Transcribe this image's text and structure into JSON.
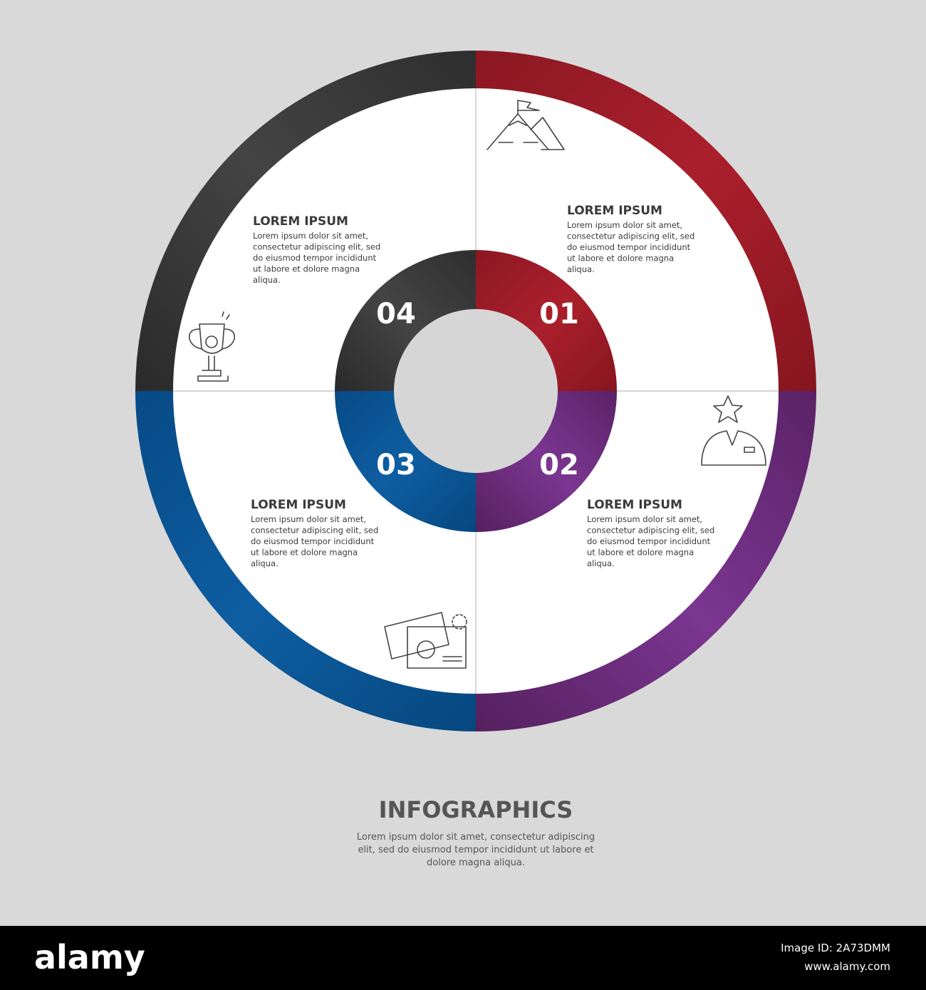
{
  "sections": [
    {
      "number": "01",
      "title": "LOREM IPSUM",
      "lines": [
        "Lorem ipsum dolor sit amet,",
        "consectetur adipiscing elit, sed",
        "do eiusmod tempor incididunt",
        "ut labore et dolore magna",
        "aliqua."
      ]
    },
    {
      "number": "02",
      "title": "LOREM IPSUM",
      "lines": [
        "Lorem ipsum dolor sit amet,",
        "consectetur adipiscing elit, sed",
        "do eiusmod tempor incididunt",
        "ut labore et dolore magna",
        "aliqua."
      ]
    },
    {
      "number": "03",
      "title": "LOREM IPSUM",
      "lines": [
        "Lorem ipsum dolor sit amet,",
        "consectetur adipiscing elit, sed",
        "do eiusmod tempor incididunt",
        "ut labore et dolore magna",
        "aliqua."
      ]
    },
    {
      "number": "04",
      "title": "LOREM IPSUM",
      "lines": [
        "Lorem ipsum dolor sit amet,",
        "consectetur adipiscing elit, sed",
        "do eiusmod tempor incididunt",
        "ut labore et dolore magna",
        "aliqua."
      ]
    }
  ],
  "footer": {
    "title": "INFOGRAPHICS",
    "lines": [
      "Lorem ipsum dolor sit amet, consectetur adipiscing",
      "elit, sed do eiusmod tempor incididunt ut labore et",
      "dolore magna aliqua."
    ]
  },
  "watermark": {
    "brand": "alamy",
    "image_id": "Image ID: 2A73DMM",
    "url": "www.alamy.com"
  }
}
